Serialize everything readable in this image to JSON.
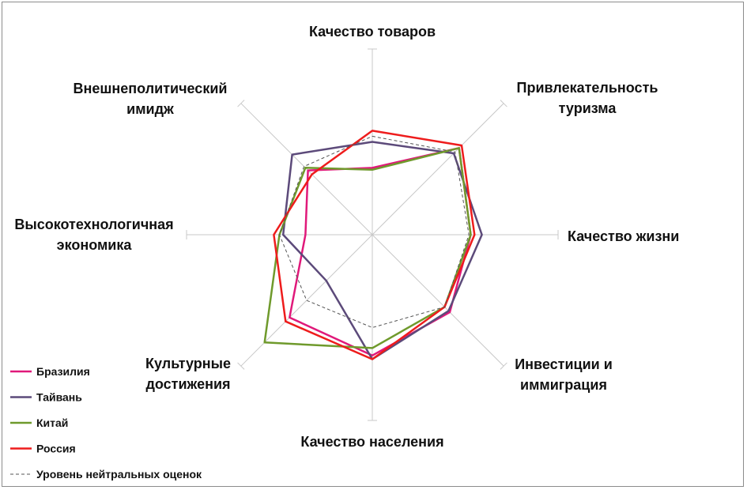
{
  "chart_data": {
    "type": "radar",
    "axes": [
      "Качество товаров",
      "Привлекательность туризма",
      "Качество жизни",
      "Инвестиции и иммиграция",
      "Качество населения",
      "Культурные достижения",
      "Высокотехнологичная экономика",
      "Внешнеполитический имидж"
    ],
    "axis_labels": [
      [
        "Качество товаров"
      ],
      [
        "Привлекательность",
        "туризма"
      ],
      [
        "Качество жизни"
      ],
      [
        "Инвестиции и",
        "иммиграция"
      ],
      [
        "Качество населения"
      ],
      [
        "Культурные",
        "достижения"
      ],
      [
        "Высокотехнологичная",
        "экономика"
      ],
      [
        "Внешнеполитический",
        "имидж"
      ]
    ],
    "range": [
      0,
      1
    ],
    "series": [
      {
        "name": "Бразилия",
        "color": "#e0197a",
        "dash": false,
        "values": [
          0.36,
          0.66,
          0.53,
          0.59,
          0.65,
          0.63,
          0.36,
          0.49
        ]
      },
      {
        "name": "Тайвань",
        "color": "#5c4a7a",
        "dash": false,
        "values": [
          0.5,
          0.62,
          0.59,
          0.58,
          0.67,
          0.35,
          0.48,
          0.61
        ]
      },
      {
        "name": "Китай",
        "color": "#6f9a2c",
        "dash": false,
        "values": [
          0.35,
          0.66,
          0.53,
          0.55,
          0.61,
          0.82,
          0.5,
          0.51
        ]
      },
      {
        "name": "Россия",
        "color": "#ee1c1c",
        "dash": false,
        "values": [
          0.56,
          0.68,
          0.55,
          0.55,
          0.67,
          0.66,
          0.53,
          0.46
        ]
      },
      {
        "name": "Уровень нейтральных оценок",
        "color": "#555555",
        "dash": true,
        "values": [
          0.53,
          0.63,
          0.52,
          0.55,
          0.5,
          0.5,
          0.5,
          0.52
        ]
      }
    ]
  }
}
